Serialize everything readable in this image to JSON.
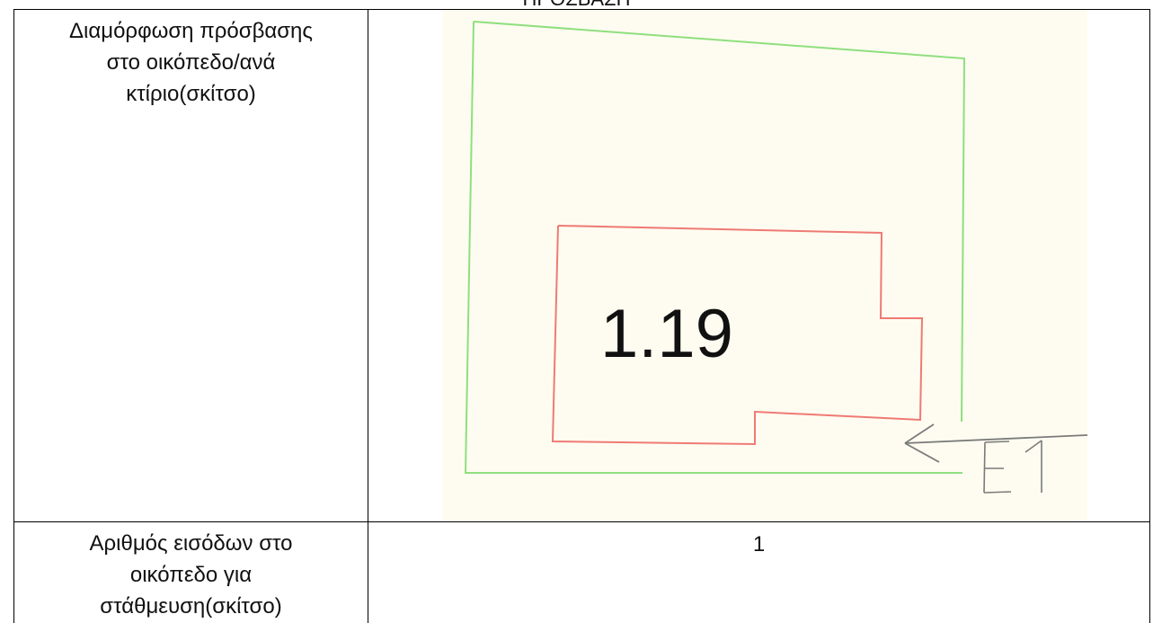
{
  "header": {
    "partial_title": "ΠΡΟΣΒΑΣΗ"
  },
  "rows": [
    {
      "label_lines": [
        "Διαμόρφωση πρόσβασης",
        "στο οικόπεδο/ανά",
        "κτίριο(σκίτσο)"
      ]
    },
    {
      "label_lines": [
        "Αριθμός εισόδων στο",
        "οικόπεδο για",
        "στάθμευση(σκίτσο)"
      ],
      "value": "1"
    }
  ],
  "sketch": {
    "building_number": "1.19",
    "entrance_label": "E1",
    "colors": {
      "plot_outline": "#8fdf7f",
      "building_outline": "#ef7a74",
      "background": "#fefcf0",
      "entrance_marker": "#7a7a7a"
    }
  }
}
